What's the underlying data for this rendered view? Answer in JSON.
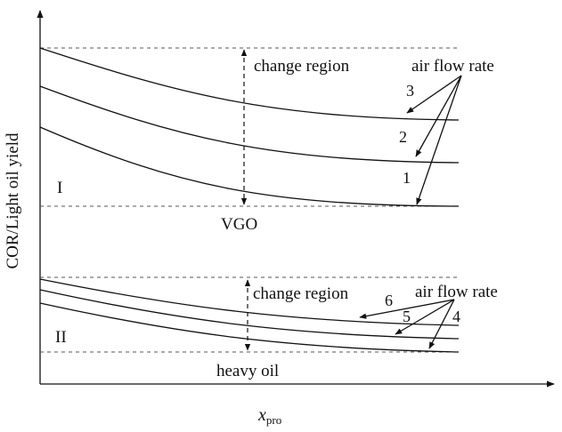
{
  "axes": {
    "y_label": "COR/Light oil yield",
    "x_label_main": "x",
    "x_label_sub": "pro"
  },
  "region_one": {
    "roman": "I",
    "change_label": "change region",
    "flow_label": "air flow rate",
    "base_label": "VGO",
    "curve_numbers": [
      "3",
      "2",
      "1"
    ]
  },
  "region_two": {
    "roman": "II",
    "change_label": "change region",
    "flow_label": "air flow rate",
    "base_label": "heavy oil",
    "curve_numbers": [
      "6",
      "5",
      "4"
    ]
  },
  "colors": {
    "line": "#111111",
    "dashed": "#555555"
  }
}
